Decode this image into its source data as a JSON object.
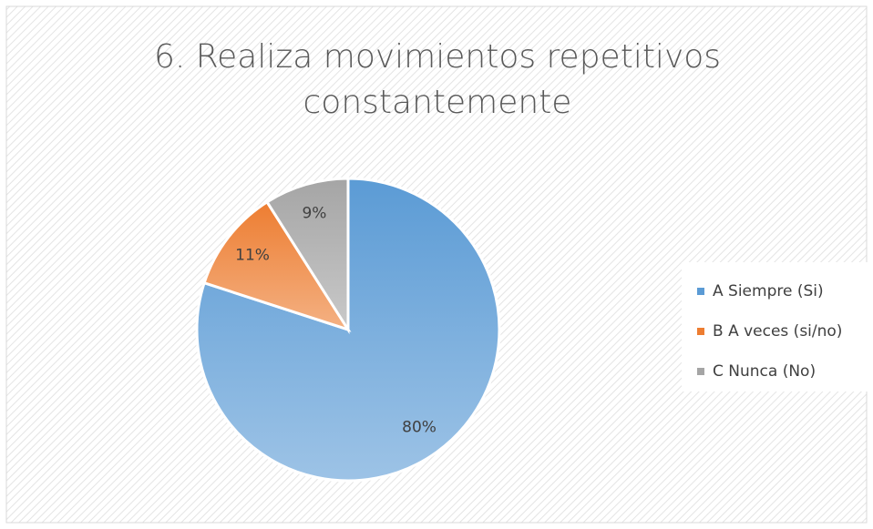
{
  "chart_data": {
    "type": "pie",
    "title": "6. Realiza movimientos repetitivos constantemente",
    "categories": [
      "A Siempre (Si)",
      "B A veces (si/no)",
      "C Nunca (No)"
    ],
    "values": [
      80,
      11,
      9
    ],
    "value_labels": [
      "80%",
      "11%",
      "9%"
    ],
    "colors": [
      "#5b9bd5",
      "#ed7d31",
      "#a5a5a5"
    ],
    "legend": "right"
  }
}
